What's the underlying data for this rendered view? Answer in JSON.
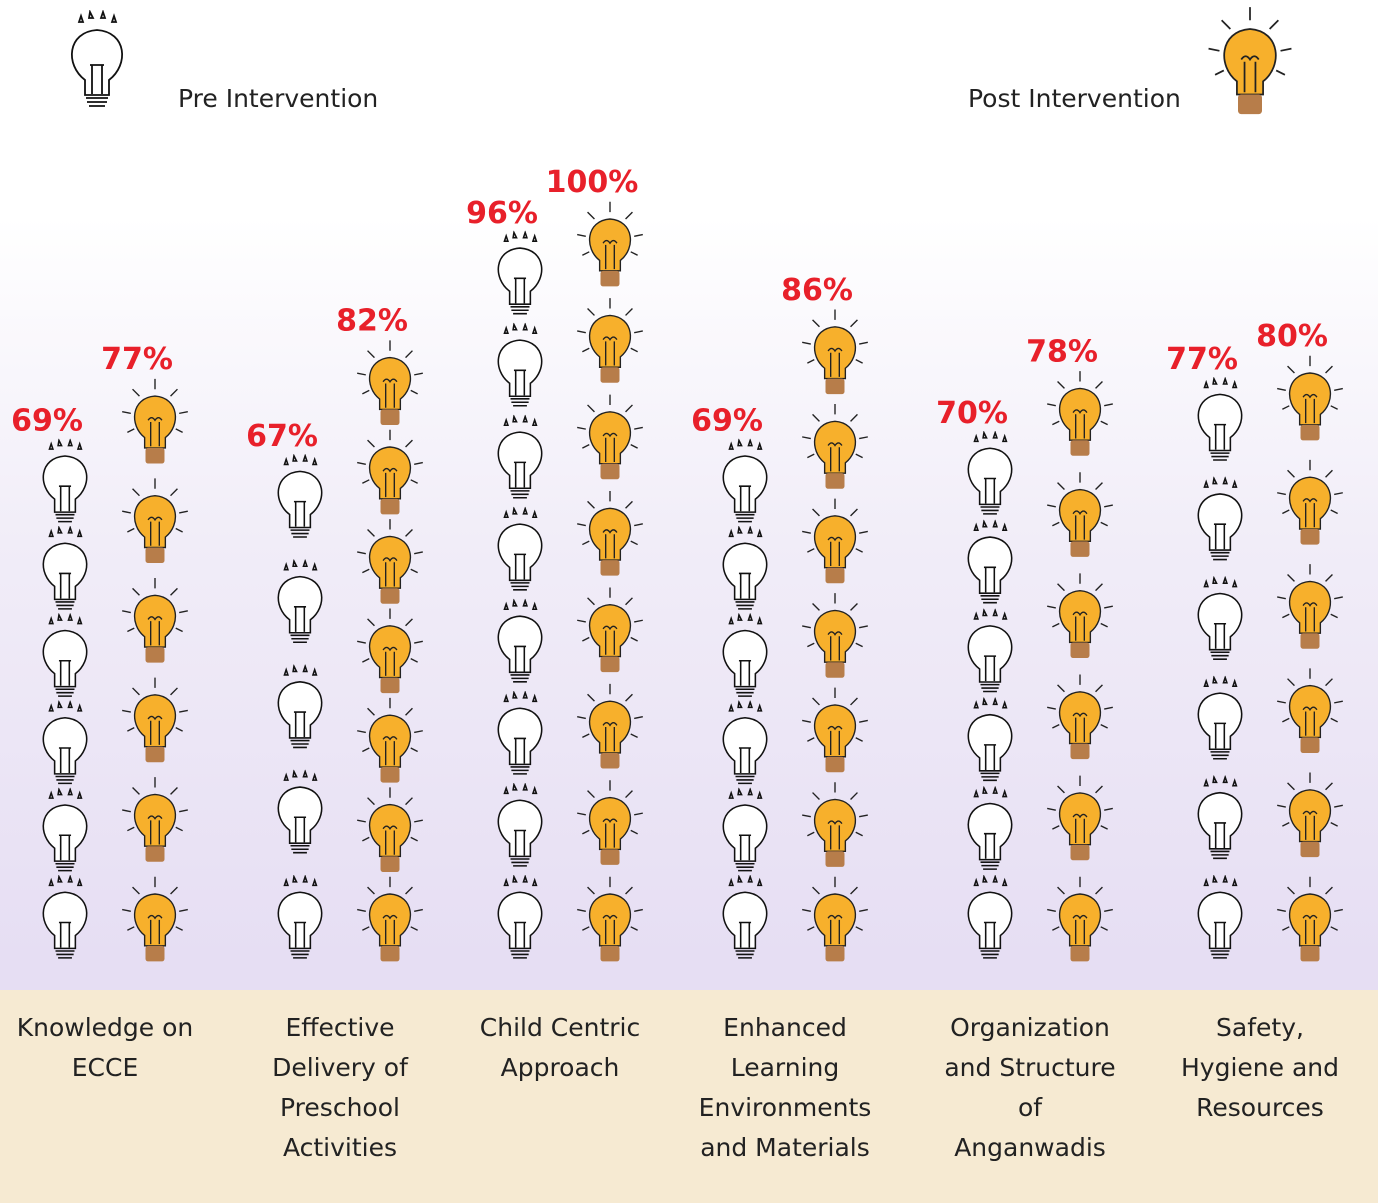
{
  "chart_data": {
    "type": "bar",
    "categories": [
      "Knowledge on ECCE",
      "Effective Delivery of Preschool Activities",
      "Child Centric Approach",
      "Enhanced Learning Environments and Materials",
      "Organization and Structure of Anganwadis",
      "Safety, Hygiene and Resources"
    ],
    "series": [
      {
        "name": "Pre Intervention",
        "color": "#ffffff",
        "values": [
          69,
          67,
          96,
          69,
          70,
          77
        ],
        "value_labels": [
          "69%",
          "67%",
          "96%",
          "69%",
          "70%",
          "77%"
        ]
      },
      {
        "name": "Post Intervention",
        "color": "#f7b02c",
        "values": [
          77,
          82,
          100,
          86,
          78,
          80
        ],
        "value_labels": [
          "77%",
          "82%",
          "100%",
          "86%",
          "78%",
          "80%"
        ]
      }
    ]
  }
}
